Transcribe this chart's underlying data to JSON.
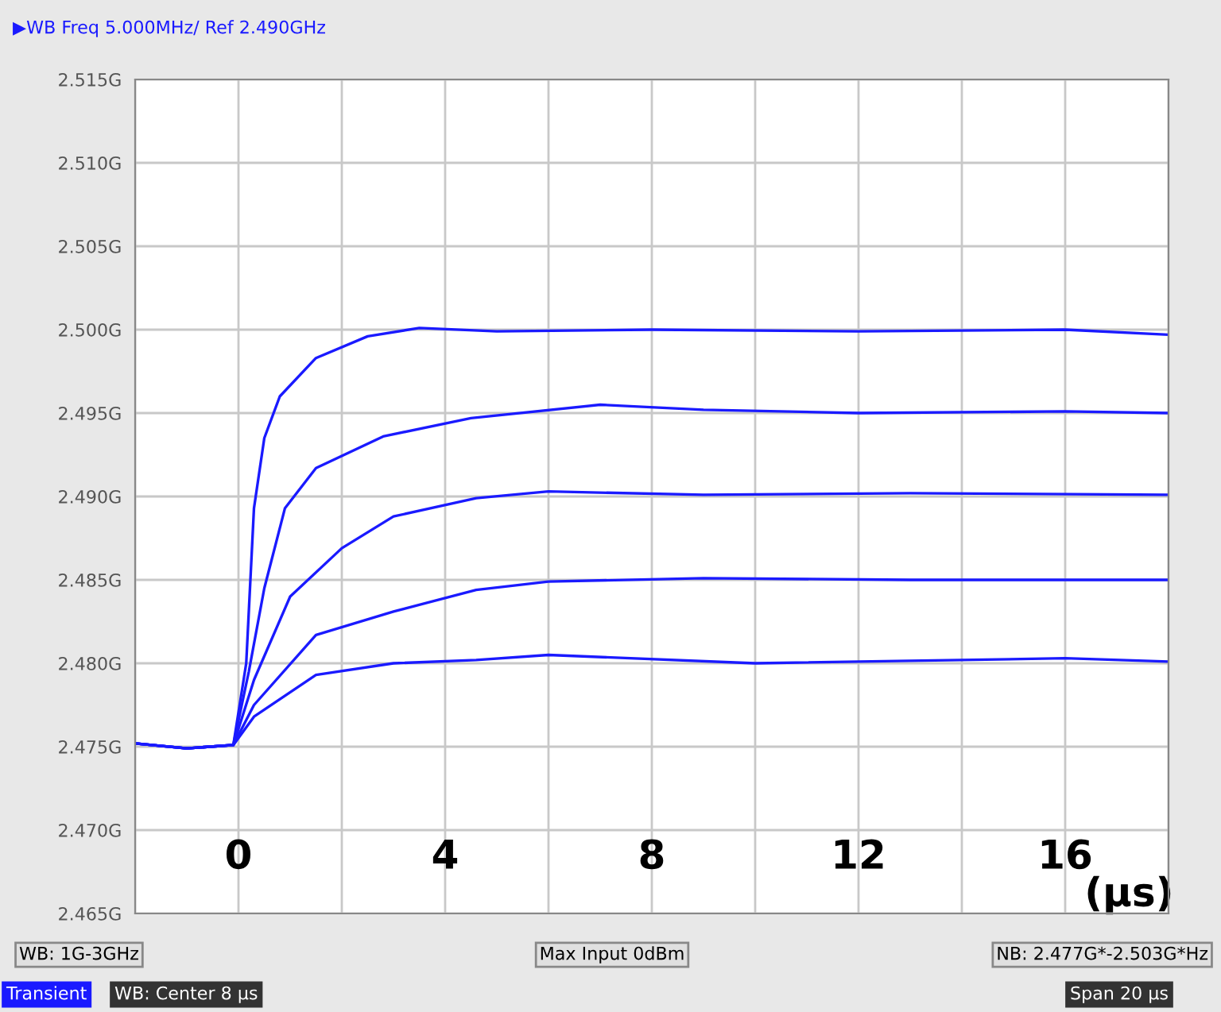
{
  "chart_data": {
    "type": "line",
    "title": "▶WB Freq 5.000MHz/ Ref 2.490GHz",
    "xlabel": "(µs)",
    "xlim": [
      -2,
      18
    ],
    "xticks": [
      {
        "value": -2,
        "label": null
      },
      {
        "value": 0,
        "label": "0"
      },
      {
        "value": 2,
        "label": null
      },
      {
        "value": 4,
        "label": "4"
      },
      {
        "value": 6,
        "label": null
      },
      {
        "value": 8,
        "label": "8"
      },
      {
        "value": 10,
        "label": null
      },
      {
        "value": 12,
        "label": "12"
      },
      {
        "value": 14,
        "label": null
      },
      {
        "value": 16,
        "label": "16"
      },
      {
        "value": 18,
        "label": null
      }
    ],
    "ylim": [
      2.465,
      2.515
    ],
    "yticks": [
      {
        "value": 2.465,
        "label": "2.465G"
      },
      {
        "value": 2.47,
        "label": "2.470G"
      },
      {
        "value": 2.475,
        "label": "2.475G"
      },
      {
        "value": 2.48,
        "label": "2.480G"
      },
      {
        "value": 2.485,
        "label": "2.485G"
      },
      {
        "value": 2.49,
        "label": "2.490G"
      },
      {
        "value": 2.495,
        "label": "2.495G"
      },
      {
        "value": 2.5,
        "label": "2.500G"
      },
      {
        "value": 2.505,
        "label": "2.505G"
      },
      {
        "value": 2.51,
        "label": "2.510G"
      },
      {
        "value": 2.515,
        "label": "2.515G"
      }
    ],
    "grid": true,
    "legend": false,
    "marker": "none",
    "line_style": "solid",
    "series": [
      {
        "color": "#1a1aff",
        "x": [
          -2,
          -1,
          -0.1,
          0.15,
          0.3,
          0.5,
          0.8,
          1.5,
          2.5,
          3.5,
          5,
          8,
          12,
          16,
          18
        ],
        "values": [
          2.4752,
          2.4749,
          2.4751,
          2.48,
          2.4893,
          2.4935,
          2.496,
          2.4983,
          2.4996,
          2.5001,
          2.4999,
          2.5,
          2.4999,
          2.5,
          2.4997
        ]
      },
      {
        "color": "#1a1aff",
        "x": [
          -2,
          -1,
          -0.1,
          0.2,
          0.5,
          0.9,
          1.5,
          2.8,
          4.5,
          7,
          9,
          12,
          16,
          18
        ],
        "values": [
          2.4752,
          2.4749,
          2.4751,
          2.4795,
          2.4845,
          2.4893,
          2.4917,
          2.4936,
          2.4947,
          2.4955,
          2.4952,
          2.495,
          2.4951,
          2.495
        ]
      },
      {
        "color": "#1a1aff",
        "x": [
          -2,
          -1,
          -0.1,
          0.3,
          1,
          2,
          3,
          4.6,
          6,
          9,
          13,
          18
        ],
        "values": [
          2.4752,
          2.4749,
          2.4751,
          2.479,
          2.484,
          2.4869,
          2.4888,
          2.4899,
          2.4903,
          2.4901,
          2.4902,
          2.4901
        ]
      },
      {
        "color": "#1a1aff",
        "x": [
          -2,
          -1,
          -0.1,
          0.3,
          1.5,
          3,
          4.6,
          6,
          9,
          13,
          18
        ],
        "values": [
          2.4752,
          2.4749,
          2.4751,
          2.4775,
          2.4817,
          2.4831,
          2.4844,
          2.4849,
          2.4851,
          2.485,
          2.485
        ]
      },
      {
        "color": "#1a1aff",
        "x": [
          -2,
          -1,
          -0.1,
          0.3,
          1.5,
          3,
          4.6,
          6,
          10,
          16,
          18
        ],
        "values": [
          2.4752,
          2.4749,
          2.4751,
          2.4768,
          2.4793,
          2.48,
          2.4802,
          2.4805,
          2.48,
          2.4803,
          2.4801
        ]
      }
    ],
    "annotations": [
      "WB: 1G-3GHz",
      "Max Input 0dBm",
      "NB: 2.477G*-2.503G*Hz",
      "Transient",
      "WB: Center 8 µs",
      "Span 20 µs"
    ]
  }
}
